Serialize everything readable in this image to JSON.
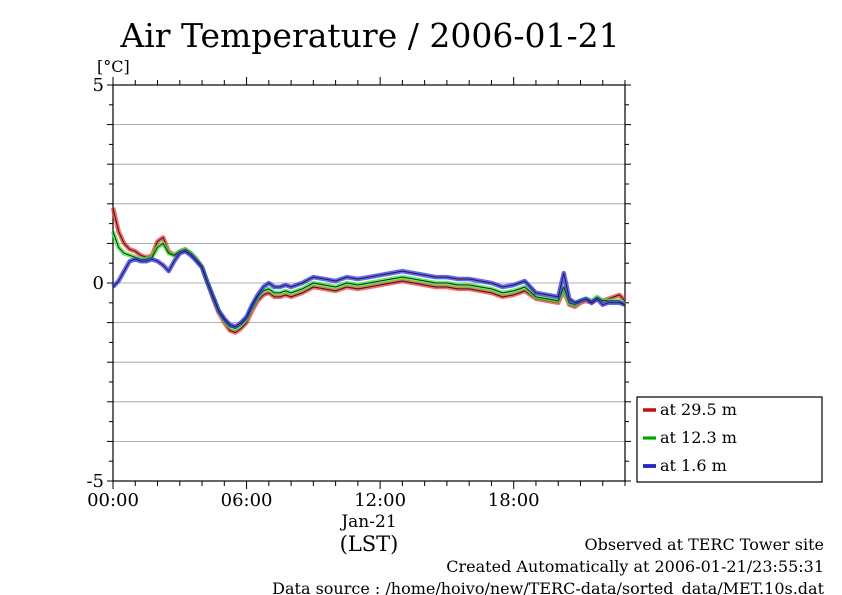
{
  "chart_data": {
    "type": "line",
    "title": "Air Temperature / 2006-01-21",
    "ylabel": "[°C]",
    "ylim": [
      -5,
      5
    ],
    "yticks": [
      -5,
      0,
      5
    ],
    "ytick_labels": [
      "-5",
      "0",
      "5"
    ],
    "xlim": [
      0,
      23
    ],
    "xticks": [
      0,
      6,
      12,
      18
    ],
    "xtick_labels": [
      "00:00",
      "06:00",
      "12:00",
      "18:00"
    ],
    "x_date_label": "Jan-21",
    "xlabel": "(LST)",
    "grid": true,
    "legend_position": "right",
    "series": [
      {
        "name": "at 29.5 m",
        "color": "#ff3333",
        "x": [
          0,
          0.25,
          0.5,
          0.75,
          1,
          1.25,
          1.5,
          1.75,
          2,
          2.25,
          2.5,
          2.75,
          3,
          3.25,
          3.5,
          3.75,
          4,
          4.25,
          4.5,
          4.75,
          5,
          5.25,
          5.5,
          5.75,
          6,
          6.25,
          6.5,
          6.75,
          7,
          7.25,
          7.5,
          7.75,
          8,
          8.5,
          9,
          9.5,
          10,
          10.5,
          11,
          11.5,
          12,
          12.5,
          13,
          13.5,
          14,
          14.5,
          15,
          15.5,
          16,
          16.5,
          17,
          17.5,
          18,
          18.5,
          19,
          19.5,
          20,
          20.25,
          20.5,
          20.75,
          21,
          21.25,
          21.5,
          21.75,
          22,
          22.25,
          22.5,
          22.75,
          23
        ],
        "y": [
          1.9,
          1.3,
          1.0,
          0.85,
          0.8,
          0.7,
          0.65,
          0.7,
          1.05,
          1.15,
          0.8,
          0.7,
          0.8,
          0.85,
          0.75,
          0.6,
          0.4,
          0.0,
          -0.4,
          -0.75,
          -1.0,
          -1.2,
          -1.25,
          -1.15,
          -1.0,
          -0.7,
          -0.45,
          -0.3,
          -0.25,
          -0.35,
          -0.35,
          -0.3,
          -0.35,
          -0.25,
          -0.1,
          -0.15,
          -0.2,
          -0.1,
          -0.15,
          -0.1,
          -0.05,
          0.0,
          0.05,
          0.0,
          -0.05,
          -0.1,
          -0.1,
          -0.15,
          -0.15,
          -0.2,
          -0.25,
          -0.35,
          -0.3,
          -0.2,
          -0.4,
          -0.45,
          -0.5,
          -0.2,
          -0.55,
          -0.6,
          -0.5,
          -0.45,
          -0.5,
          -0.4,
          -0.45,
          -0.4,
          -0.35,
          -0.3,
          -0.45
        ]
      },
      {
        "name": "at 12.3 m",
        "color": "#33ee33",
        "x": [
          0,
          0.25,
          0.5,
          0.75,
          1,
          1.25,
          1.5,
          1.75,
          2,
          2.25,
          2.5,
          2.75,
          3,
          3.25,
          3.5,
          3.75,
          4,
          4.25,
          4.5,
          4.75,
          5,
          5.25,
          5.5,
          5.75,
          6,
          6.25,
          6.5,
          6.75,
          7,
          7.25,
          7.5,
          7.75,
          8,
          8.5,
          9,
          9.5,
          10,
          10.5,
          11,
          11.5,
          12,
          12.5,
          13,
          13.5,
          14,
          14.5,
          15,
          15.5,
          16,
          16.5,
          17,
          17.5,
          18,
          18.5,
          19,
          19.5,
          20,
          20.25,
          20.5,
          20.75,
          21,
          21.25,
          21.5,
          21.75,
          22,
          22.25,
          22.5,
          22.75,
          23
        ],
        "y": [
          1.3,
          0.9,
          0.75,
          0.7,
          0.65,
          0.6,
          0.6,
          0.65,
          0.9,
          1.0,
          0.75,
          0.7,
          0.8,
          0.85,
          0.75,
          0.6,
          0.4,
          0.0,
          -0.35,
          -0.7,
          -0.95,
          -1.1,
          -1.15,
          -1.05,
          -0.9,
          -0.6,
          -0.35,
          -0.2,
          -0.15,
          -0.25,
          -0.25,
          -0.2,
          -0.25,
          -0.15,
          0.0,
          -0.05,
          -0.1,
          0.0,
          -0.05,
          0.0,
          0.05,
          0.1,
          0.15,
          0.1,
          0.05,
          0.0,
          0.0,
          -0.05,
          -0.05,
          -0.1,
          -0.15,
          -0.25,
          -0.2,
          -0.1,
          -0.35,
          -0.4,
          -0.45,
          -0.1,
          -0.5,
          -0.55,
          -0.45,
          -0.4,
          -0.45,
          -0.35,
          -0.45,
          -0.45,
          -0.45,
          -0.45,
          -0.55
        ]
      },
      {
        "name": "at 1.6 m",
        "color": "#3333ff",
        "x": [
          0,
          0.25,
          0.5,
          0.75,
          1,
          1.25,
          1.5,
          1.75,
          2,
          2.25,
          2.5,
          2.75,
          3,
          3.25,
          3.5,
          3.75,
          4,
          4.25,
          4.5,
          4.75,
          5,
          5.25,
          5.5,
          5.75,
          6,
          6.25,
          6.5,
          6.75,
          7,
          7.25,
          7.5,
          7.75,
          8,
          8.5,
          9,
          9.5,
          10,
          10.5,
          11,
          11.5,
          12,
          12.5,
          13,
          13.5,
          14,
          14.5,
          15,
          15.5,
          16,
          16.5,
          17,
          17.5,
          18,
          18.5,
          19,
          19.5,
          20,
          20.25,
          20.5,
          20.75,
          21,
          21.25,
          21.5,
          21.75,
          22,
          22.25,
          22.5,
          22.75,
          23
        ],
        "y": [
          -0.1,
          0.05,
          0.3,
          0.55,
          0.6,
          0.55,
          0.55,
          0.6,
          0.55,
          0.45,
          0.3,
          0.55,
          0.75,
          0.8,
          0.7,
          0.55,
          0.4,
          0.0,
          -0.35,
          -0.7,
          -0.9,
          -1.05,
          -1.1,
          -1.0,
          -0.85,
          -0.55,
          -0.3,
          -0.1,
          0.0,
          -0.1,
          -0.1,
          -0.05,
          -0.1,
          0.0,
          0.15,
          0.1,
          0.05,
          0.15,
          0.1,
          0.15,
          0.2,
          0.25,
          0.3,
          0.25,
          0.2,
          0.15,
          0.15,
          0.1,
          0.1,
          0.05,
          0.0,
          -0.1,
          -0.05,
          0.05,
          -0.25,
          -0.3,
          -0.35,
          0.25,
          -0.4,
          -0.5,
          -0.45,
          -0.4,
          -0.5,
          -0.4,
          -0.55,
          -0.5,
          -0.5,
          -0.5,
          -0.55
        ]
      }
    ]
  },
  "footer": {
    "line1": "Observed at TERC Tower site",
    "line2": "Created Automatically at 2006-01-21/23:55:31",
    "line3": "Data source : /home/hoivo/new/TERC-data/sorted_data/MET.10s.dat"
  }
}
